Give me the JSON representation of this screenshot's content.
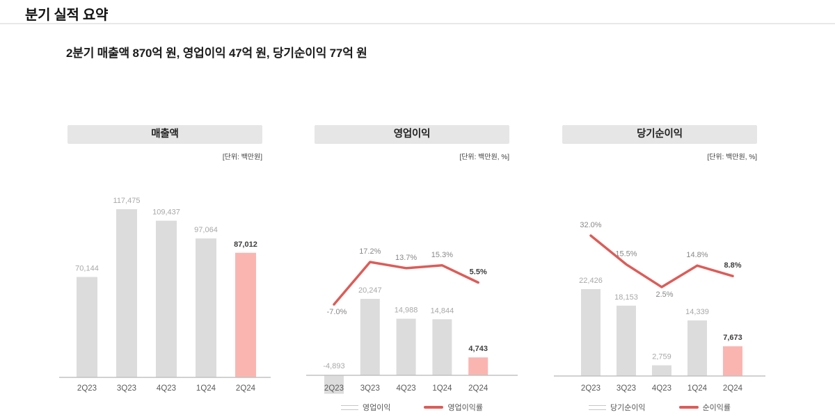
{
  "page": {
    "title": "분기 실적 요약",
    "subtitle": "2분기 매출액 870억 원, 영업이익 47억 원, 당기순이익 77억 원"
  },
  "chart_data": [
    {
      "type": "bar",
      "title": "매출액",
      "unit_label": "[단위: 백만원]",
      "categories": [
        "2Q23",
        "3Q23",
        "4Q23",
        "1Q24",
        "2Q24"
      ],
      "series": [
        {
          "name": "매출액",
          "type": "bar",
          "values": [
            70144,
            117475,
            109437,
            97064,
            87012
          ],
          "labels": [
            "70,144",
            "117,475",
            "109,437",
            "97,064",
            "87,012"
          ]
        }
      ],
      "highlight_index": 4,
      "grid": false,
      "y_axis_visible": false
    },
    {
      "type": "bar+line",
      "title": "영업이익",
      "unit_label": "[단위: 백만원, %]",
      "categories": [
        "2Q23",
        "3Q23",
        "4Q23",
        "1Q24",
        "2Q24"
      ],
      "series": [
        {
          "name": "영업이익",
          "type": "bar",
          "values": [
            -4893,
            20247,
            14988,
            14844,
            4743
          ],
          "labels": [
            "-4,893",
            "20,247",
            "14,988",
            "14,844",
            "4,743"
          ]
        },
        {
          "name": "영업이익률",
          "type": "line",
          "values": [
            -7.0,
            17.2,
            13.7,
            15.3,
            5.5
          ],
          "labels": [
            "-7.0%",
            "17.2%",
            "13.7%",
            "15.3%",
            "5.5%"
          ]
        }
      ],
      "highlight_index": 4,
      "legend": [
        "영업이익",
        "영업이익률"
      ],
      "legend_position": "bottom",
      "grid": false,
      "y_axis_visible": false
    },
    {
      "type": "bar+line",
      "title": "당기순이익",
      "unit_label": "[단위: 백만원, %]",
      "categories": [
        "2Q23",
        "3Q23",
        "4Q23",
        "1Q24",
        "2Q24"
      ],
      "series": [
        {
          "name": "당기순이익",
          "type": "bar",
          "values": [
            22426,
            18153,
            2759,
            14339,
            7673
          ],
          "labels": [
            "22,426",
            "18,153",
            "2,759",
            "14,339",
            "7,673"
          ]
        },
        {
          "name": "순이익률",
          "type": "line",
          "values": [
            32.0,
            15.5,
            2.5,
            14.8,
            8.8
          ],
          "labels": [
            "32.0%",
            "15.5%",
            "2.5%",
            "14.8%",
            "8.8%"
          ]
        }
      ],
      "highlight_index": 4,
      "legend": [
        "당기순이익",
        "순이익률"
      ],
      "legend_position": "bottom",
      "grid": false,
      "y_axis_visible": false
    }
  ],
  "colors": {
    "bar": "#dcdcdc",
    "bar_highlight": "#fbb5b1",
    "line": "#dd5c58",
    "axis": "#c2c2c2",
    "value_label": "#a8a8a8",
    "value_label_emphasis": "#3d3d3d",
    "percent_label": "#878787",
    "percent_label_emphasis": "#3d3d3d",
    "category_label": "#5a5a5a",
    "header_bg": "#e6e6e6"
  }
}
